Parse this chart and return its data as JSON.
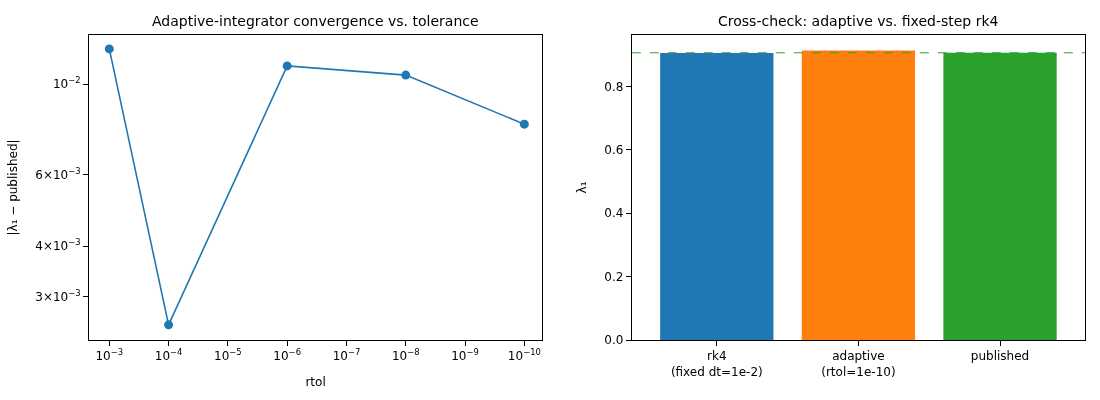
{
  "chart_data": [
    {
      "type": "line",
      "title": "Adaptive-integrator convergence vs. tolerance",
      "xlabel": "rtol",
      "ylabel": "|λ₁ − published|",
      "log": "xy",
      "marker": "circle",
      "line_style": "solid",
      "x": [
        0.001,
        0.0001,
        1e-06,
        1e-08,
        1e-10
      ],
      "series": [
        {
          "color": "#1f77b4",
          "values": [
            0.0122,
            0.00256,
            0.01108,
            0.01052,
            0.00797
          ]
        }
      ],
      "xlim": [
        0.0022,
        5e-11
      ],
      "xticks": [
        {
          "value": 0.001,
          "label": "10$^{−3}$"
        },
        {
          "value": 0.0001,
          "label": "10$^{−4}$"
        },
        {
          "value": 1e-05,
          "label": "10$^{−5}$"
        },
        {
          "value": 1e-06,
          "label": "10$^{−6}$"
        },
        {
          "value": 1e-07,
          "label": "10$^{−7}$"
        },
        {
          "value": 1e-08,
          "label": "10$^{−8}$"
        },
        {
          "value": 1e-09,
          "label": "10$^{−9}$"
        },
        {
          "value": 1e-10,
          "label": "10$^{−10}$"
        }
      ],
      "ylim": [
        0.00235,
        0.0132
      ],
      "yticks": [
        {
          "value": 0.003,
          "label": "3×10$^{−3}$"
        },
        {
          "value": 0.004,
          "label": "4×10$^{−3}$"
        },
        {
          "value": 0.006,
          "label": "6×10$^{−3}$"
        },
        {
          "value": 0.01,
          "label": "10$^{−2}$"
        }
      ]
    },
    {
      "type": "bar",
      "title": "Cross-check: adaptive vs. fixed-step rk4",
      "ylabel": "λ₁",
      "categories": [
        "rk4\n(fixed dt=1e-2)",
        "adaptive\n(rtol=1e-10)",
        "published"
      ],
      "values": [
        0.905,
        0.913,
        0.906
      ],
      "colors": [
        "#1f77b4",
        "#ff7f0e",
        "#2ca02c"
      ],
      "ylim": [
        0,
        0.962
      ],
      "yticks": [
        {
          "value": 0,
          "label": "0.0"
        },
        0.2,
        0.4,
        0.6,
        0.8
      ],
      "ref_lines": [
        {
          "axis": "y",
          "value": 0.906,
          "color": "#2ca02c",
          "line_style": "dashed"
        }
      ]
    }
  ]
}
